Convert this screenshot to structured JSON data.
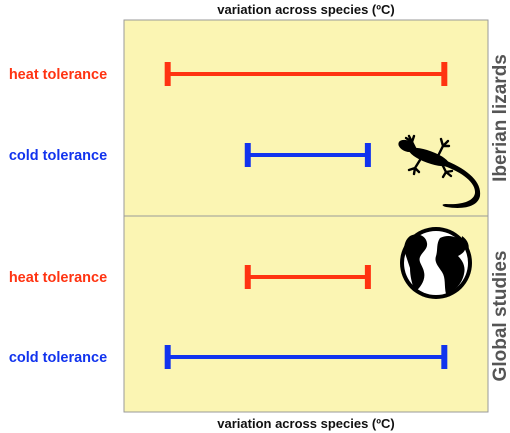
{
  "chart_data": {
    "type": "range",
    "title_top": "variation across species (ºC)",
    "title_bottom": "variation across species (ºC)",
    "colors": {
      "panel_bg": "#fbf5b3",
      "panel_border": "#9a9a9a",
      "heat": "#ff3311",
      "cold": "#1133ee",
      "group_label": "#555555"
    },
    "scale": [
      0,
      1
    ],
    "panels": [
      {
        "group": "Iberian lizards",
        "icon": "lizard-icon",
        "rows": [
          {
            "label": "heat tolerance",
            "kind": "heat",
            "start": 0.12,
            "end": 0.88
          },
          {
            "label": "cold tolerance",
            "kind": "cold",
            "start": 0.34,
            "end": 0.67
          }
        ]
      },
      {
        "group": "Global studies",
        "icon": "globe-icon",
        "rows": [
          {
            "label": "heat tolerance",
            "kind": "heat",
            "start": 0.34,
            "end": 0.67
          },
          {
            "label": "cold tolerance",
            "kind": "cold",
            "start": 0.12,
            "end": 0.88
          }
        ]
      }
    ]
  }
}
